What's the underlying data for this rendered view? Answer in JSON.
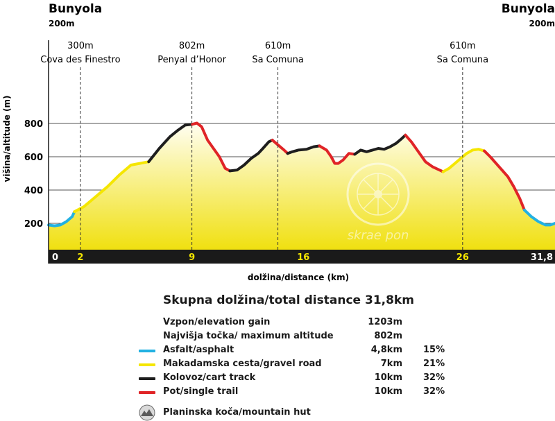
{
  "header": {
    "start_name": "Bunyola",
    "start_alt": "200m",
    "end_name": "Bunyola",
    "end_alt": "200m"
  },
  "chart_data": {
    "type": "area",
    "xlabel": "dolžina/distance (km)",
    "ylabel": "višina/altitude (m)",
    "xlim": [
      0,
      31.8
    ],
    "ylim": [
      0,
      1300
    ],
    "y_ticks": [
      "200",
      "400",
      "600",
      "800"
    ],
    "x_ticks": [
      {
        "v": 0,
        "label": "0",
        "color": "#ffffff"
      },
      {
        "v": 2,
        "label": "2",
        "color": "#f5e600"
      },
      {
        "v": 9,
        "label": "9",
        "color": "#f5e600"
      },
      {
        "v": 16,
        "label": "16",
        "color": "#f5e600"
      },
      {
        "v": 26,
        "label": "26",
        "color": "#f5e600"
      },
      {
        "v": 31.8,
        "label": "31,8",
        "color": "#ffffff"
      }
    ],
    "waypoints": [
      {
        "v": 2,
        "alt": "300m",
        "name": "Cova des Finestro"
      },
      {
        "v": 9,
        "alt": "802m",
        "name": "Penyal d’Honor"
      },
      {
        "v": 14.4,
        "alt": "610m",
        "name": "Sa Comuna"
      },
      {
        "v": 26,
        "alt": "610m",
        "name": "Sa Comuna"
      }
    ],
    "colors": {
      "asphalt": "#22b1e2",
      "gravel": "#f5e600",
      "cart": "#1e1e1e",
      "trail": "#e02427",
      "fill_top": "#fffef2",
      "fill_bottom": "#f0e010",
      "axis_bar": "#1a1a1a"
    },
    "segments": [
      {
        "type": "asphalt",
        "points": [
          [
            0,
            190
          ],
          [
            0.5,
            185
          ],
          [
            1,
            190
          ],
          [
            1.5,
            210
          ],
          [
            2,
            240
          ],
          [
            2.2,
            270
          ]
        ]
      },
      {
        "type": "gravel",
        "points": [
          [
            2.2,
            270
          ],
          [
            3,
            300
          ],
          [
            4,
            360
          ],
          [
            5,
            420
          ],
          [
            6,
            490
          ],
          [
            7,
            550
          ],
          [
            8.5,
            570
          ]
        ]
      },
      {
        "type": "cart",
        "points": [
          [
            8.5,
            570
          ],
          [
            9.4,
            650
          ],
          [
            10.3,
            720
          ],
          [
            11,
            760
          ],
          [
            11.6,
            790
          ],
          [
            12.2,
            795
          ]
        ]
      },
      {
        "type": "trail",
        "points": [
          [
            12.2,
            795
          ],
          [
            12.6,
            802
          ],
          [
            13,
            780
          ],
          [
            13.5,
            700
          ],
          [
            14,
            650
          ],
          [
            14.5,
            600
          ],
          [
            15,
            530
          ],
          [
            15.4,
            515
          ]
        ]
      },
      {
        "type": "cart",
        "points": [
          [
            15.4,
            515
          ],
          [
            16,
            520
          ],
          [
            16.6,
            550
          ],
          [
            17.2,
            590
          ],
          [
            17.8,
            620
          ],
          [
            18.2,
            650
          ],
          [
            18.7,
            690
          ],
          [
            19,
            700
          ]
        ]
      },
      {
        "type": "trail",
        "points": [
          [
            19,
            700
          ],
          [
            19.5,
            670
          ],
          [
            20,
            640
          ],
          [
            20.3,
            620
          ]
        ]
      },
      {
        "type": "cart",
        "points": [
          [
            20.3,
            620
          ],
          [
            20.7,
            630
          ],
          [
            21.2,
            640
          ],
          [
            21.9,
            645
          ],
          [
            22.5,
            660
          ],
          [
            23,
            665
          ]
        ]
      },
      {
        "type": "trail",
        "points": [
          [
            23,
            665
          ],
          [
            23.6,
            640
          ],
          [
            24,
            600
          ],
          [
            24.3,
            560
          ],
          [
            24.6,
            560
          ],
          [
            25,
            580
          ],
          [
            25.5,
            620
          ],
          [
            26,
            615
          ]
        ]
      },
      {
        "type": "cart",
        "points": [
          [
            26,
            615
          ],
          [
            26.5,
            640
          ],
          [
            27,
            630
          ],
          [
            27.5,
            640
          ],
          [
            28,
            650
          ],
          [
            28.5,
            645
          ],
          [
            29,
            660
          ],
          [
            29.5,
            680
          ],
          [
            30,
            710
          ],
          [
            30.3,
            730
          ]
        ]
      },
      {
        "type": "trail",
        "points": [
          [
            30.3,
            730
          ],
          [
            30.8,
            690
          ],
          [
            31.2,
            650
          ],
          [
            31.6,
            610
          ],
          [
            32,
            570
          ],
          [
            32.6,
            540
          ],
          [
            33.5,
            510
          ]
        ]
      },
      {
        "type": "gravel",
        "points": [
          [
            33.5,
            510
          ],
          [
            34,
            530
          ],
          [
            34.5,
            560
          ],
          [
            35,
            590
          ],
          [
            35.5,
            620
          ],
          [
            36,
            640
          ],
          [
            36.5,
            645
          ],
          [
            37,
            635
          ]
        ]
      },
      {
        "type": "trail",
        "points": [
          [
            37,
            635
          ],
          [
            37.5,
            600
          ],
          [
            38,
            560
          ],
          [
            38.5,
            520
          ],
          [
            39,
            480
          ],
          [
            39.5,
            420
          ],
          [
            40,
            350
          ],
          [
            40.4,
            280
          ]
        ]
      },
      {
        "type": "asphalt",
        "points": [
          [
            40.4,
            280
          ],
          [
            41,
            240
          ],
          [
            41.6,
            210
          ],
          [
            42.2,
            190
          ],
          [
            42.6,
            190
          ],
          [
            43,
            200
          ]
        ]
      }
    ],
    "x_scale_total": 43
  },
  "stats": {
    "title": "Skupna dolžina/total distance  31,8km",
    "rows": [
      {
        "name": "Vzpon/elevation gain",
        "value": "1203m",
        "pct": ""
      },
      {
        "name": "Najvišja točka/ maximum altitude",
        "value": "802m",
        "pct": ""
      },
      {
        "name": "Asfalt/asphalt",
        "value": "4,8km",
        "pct": "15%",
        "swatch": "#22b1e2"
      },
      {
        "name": "Makadamska cesta/gravel road",
        "value": "7km",
        "pct": "21%",
        "swatch": "#f5e600"
      },
      {
        "name": "Kolovoz/cart track",
        "value": "10km",
        "pct": "32%",
        "swatch": "#1e1e1e"
      },
      {
        "name": "Pot/single trail",
        "value": "10km",
        "pct": "32%",
        "swatch": "#e02427"
      }
    ],
    "hut_label": "Planinska koča/mountain hut",
    "hut_icon": "mountain-hut-icon"
  },
  "watermark": {
    "text": "skrae pon"
  }
}
